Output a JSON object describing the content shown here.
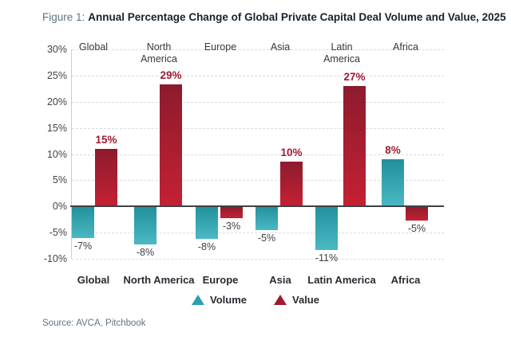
{
  "figure": {
    "label": "Figure 1:",
    "title": "Annual Percentage Change of Global Private Capital Deal Volume and Value, 2025",
    "source": "Source: AVCA, Pitchbook"
  },
  "chart_data": {
    "type": "bar",
    "categories": [
      "Global",
      "North America",
      "Europe",
      "Asia",
      "Latin America",
      "Africa"
    ],
    "categories_top": [
      "Global",
      "North\nAmerica",
      "Europe",
      "Asia",
      "Latin\nAmerica",
      "Africa"
    ],
    "series": [
      {
        "name": "Volume",
        "values": [
          -7,
          -8,
          -8,
          -5,
          -11,
          8
        ],
        "color": "#2aa2ad",
        "gradient": [
          "#20909c",
          "#4bb9c3"
        ]
      },
      {
        "name": "Value",
        "values": [
          15,
          29,
          -3,
          10,
          27,
          -5
        ],
        "color": "#9e1b32",
        "gradient": [
          "#8c1b2d",
          "#c42133"
        ]
      }
    ],
    "value_labels": {
      "Volume": [
        "-7%",
        "-8%",
        "-8%",
        "-5%",
        "-11%",
        "8%"
      ],
      "Value": [
        "15%",
        "29%",
        "-3%",
        "10%",
        "27%",
        "-5%"
      ]
    },
    "ylim": [
      -10,
      30
    ],
    "yticks": [
      30,
      25,
      20,
      15,
      10,
      5,
      0,
      -5,
      -10
    ],
    "ytick_labels": [
      "30%",
      "25%",
      "20%",
      "15%",
      "10%",
      "5%",
      "0%",
      "-5%",
      "-10%"
    ],
    "grid": "horizontal-dashed",
    "legend_position": "bottom",
    "label_colors": {
      "positive": "#9f1c31",
      "negative": "#3a3f44"
    },
    "visual_bar_heights": {
      "note": "bars as drawn are slightly smaller than labeled values",
      "Volume": [
        -6.0,
        -7.2,
        -6.2,
        -4.5,
        -8.4,
        9.0
      ],
      "Value": [
        11.0,
        23.3,
        -2.3,
        8.6,
        23.0,
        -2.7
      ]
    }
  }
}
